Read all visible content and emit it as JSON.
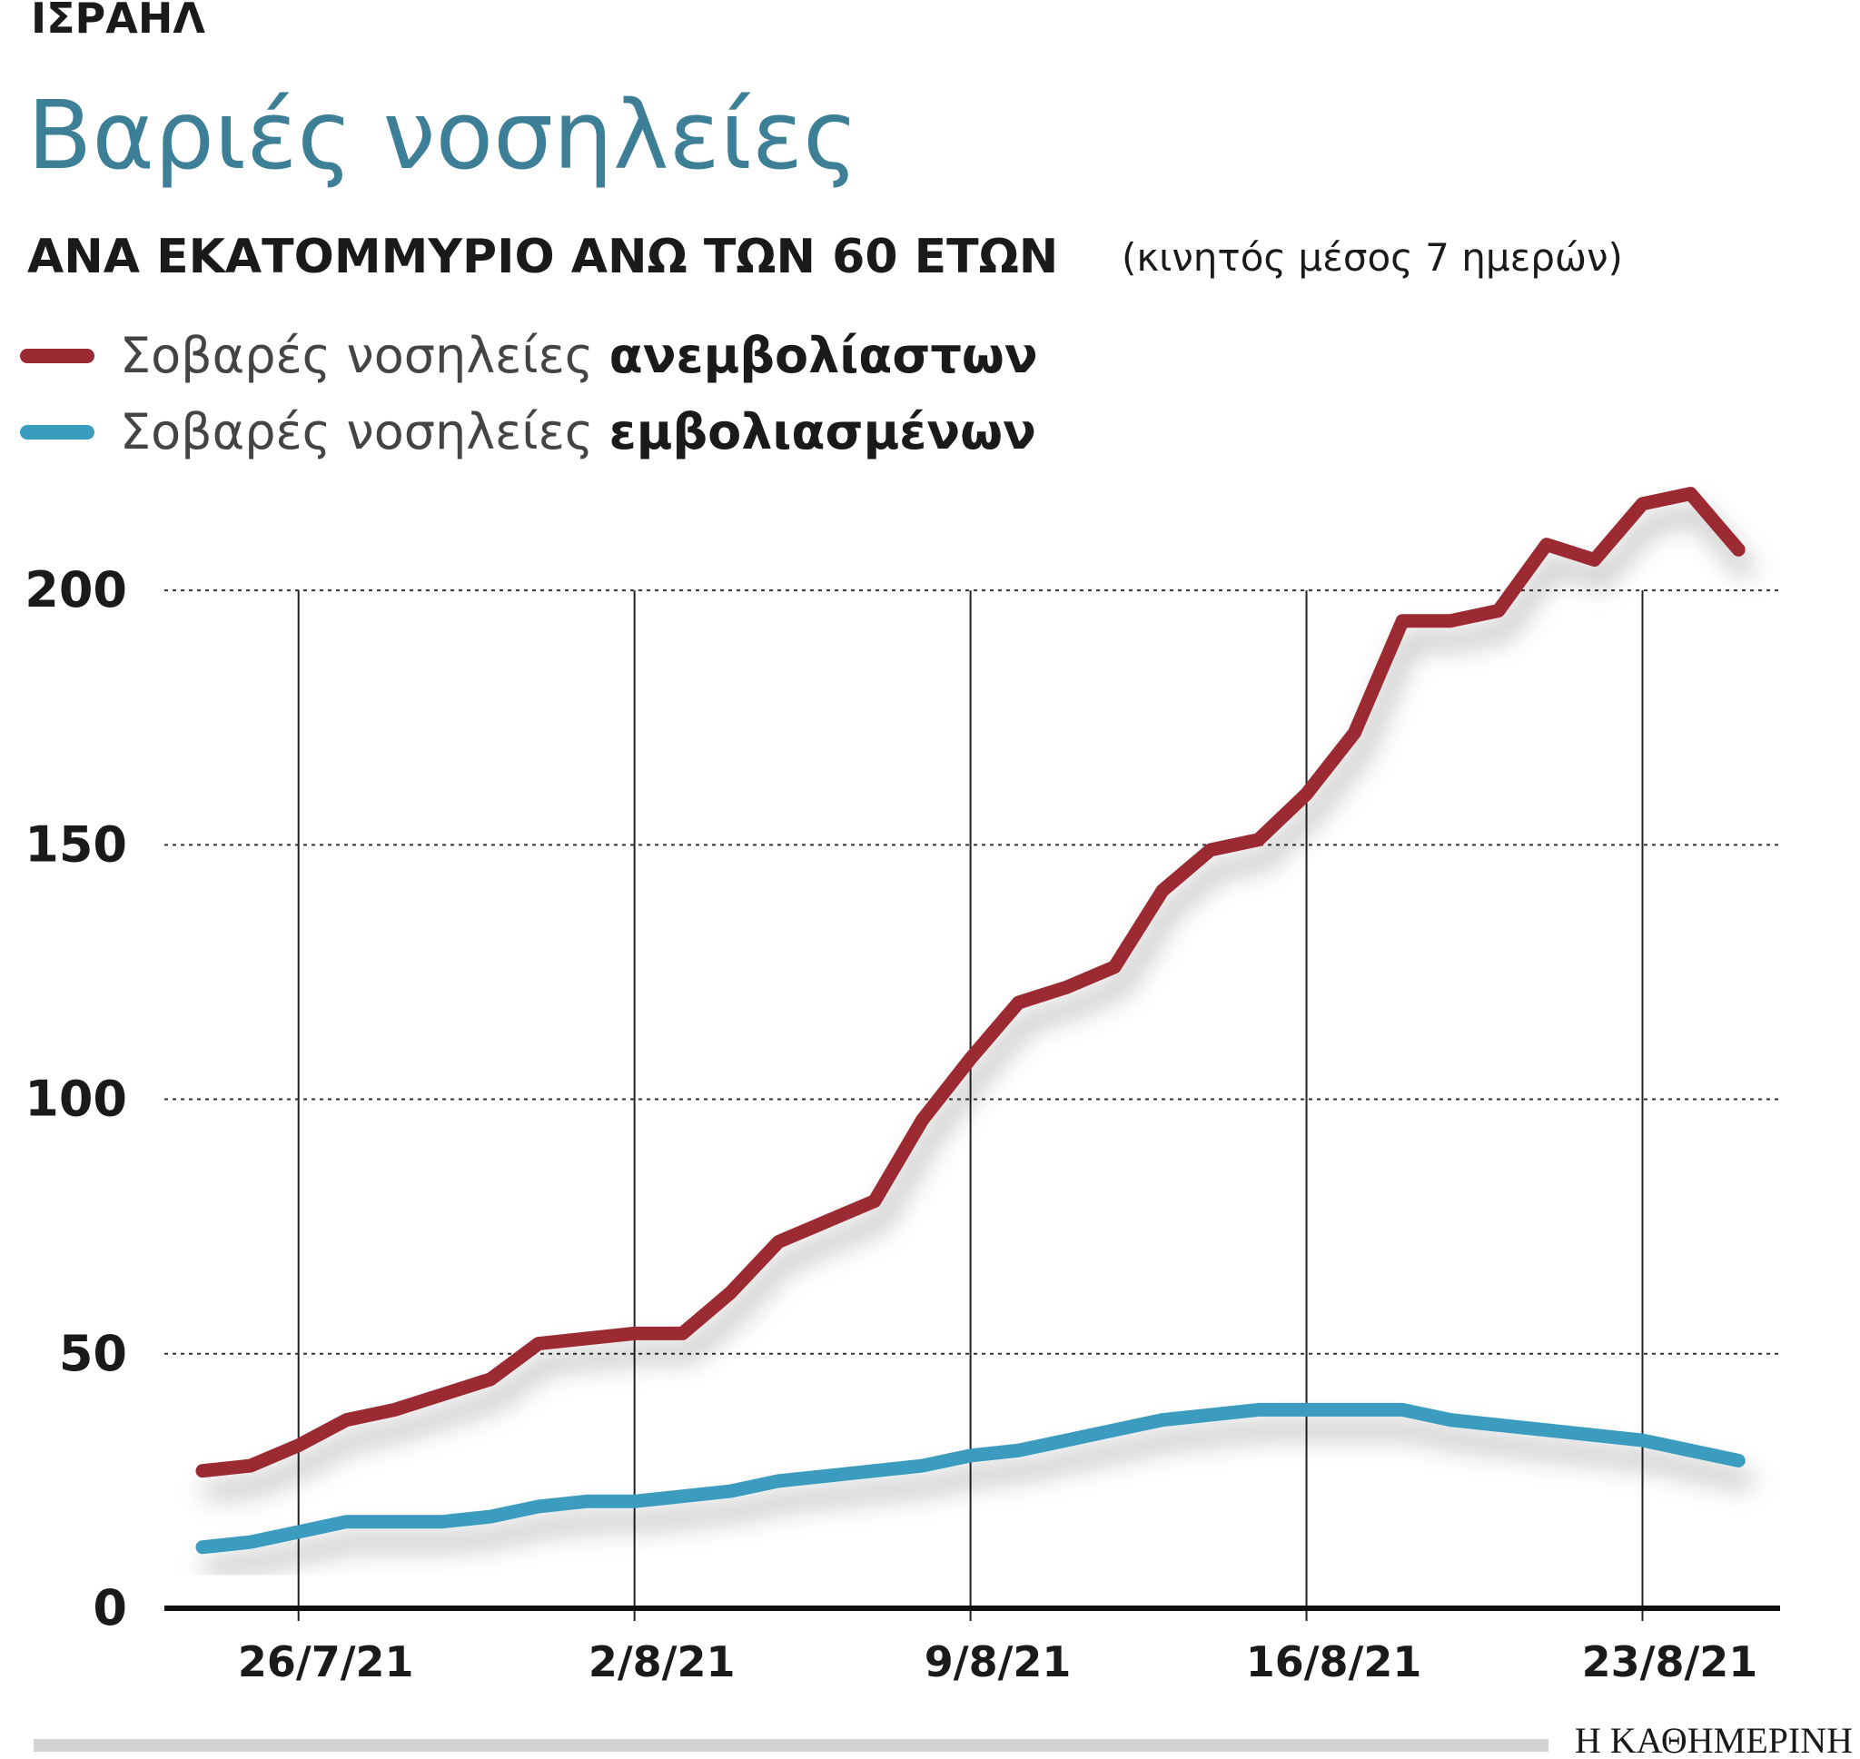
{
  "chart_data": {
    "type": "line",
    "kicker": "ΙΣΡΑΗΛ",
    "title": "Βαριές νοσηλείες",
    "subtitle": "ΑΝΑ ΕΚΑΤΟΜΜΥΡΙΟ ΑΝΩ ΤΩΝ 60 ΕΤΩΝ",
    "subtitle_note": "(κινητός μέσος 7 ημερών)",
    "source": "Η ΚΑΘΗΜΕΡΙΝΗ",
    "categories": [
      null,
      null,
      "26/7/21",
      null,
      null,
      null,
      null,
      null,
      null,
      "2/8/21",
      null,
      null,
      null,
      null,
      null,
      null,
      "9/8/21",
      null,
      null,
      null,
      null,
      null,
      null,
      "16/8/21",
      null,
      null,
      null,
      null,
      null,
      null,
      "23/8/21",
      null,
      null
    ],
    "series": [
      {
        "name": "Σοβαρές νοσηλείες ανεμβολίαστων",
        "color": "#9b2a33",
        "values": [
          27,
          28,
          32,
          37,
          39,
          42,
          45,
          52,
          53,
          54,
          54,
          62,
          72,
          76,
          80,
          96,
          108,
          119,
          122,
          126,
          141,
          149,
          151,
          160,
          172,
          194,
          194,
          196,
          209,
          206,
          217,
          219,
          208
        ]
      },
      {
        "name": "Σοβαρές νοσηλείες εμβολιασμένων",
        "color": "#3a9cbf",
        "values": [
          12,
          13,
          15,
          17,
          17,
          17,
          18,
          20,
          21,
          21,
          22,
          23,
          25,
          26,
          27,
          28,
          30,
          31,
          33,
          35,
          37,
          38,
          39,
          39,
          39,
          39,
          37,
          36,
          35,
          34,
          33,
          31,
          29
        ]
      }
    ],
    "ylim": [
      0,
      220
    ],
    "yticks": [
      0,
      50,
      100,
      150,
      200
    ],
    "grid": true
  }
}
